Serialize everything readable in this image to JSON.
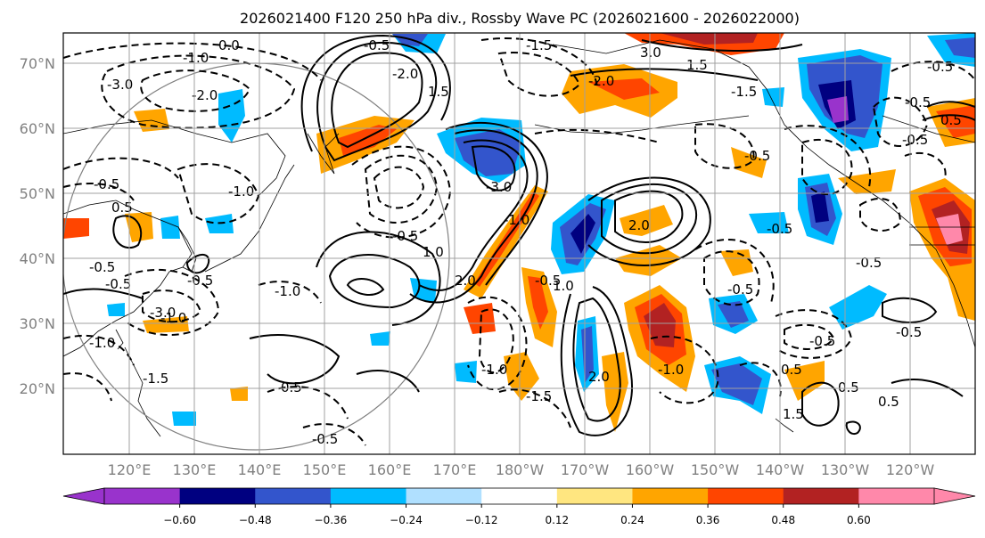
{
  "title": "2026021400 F120 250 hPa div., Rossby Wave PC (2026021600 - 2026022000)",
  "lat_labels": [
    "70°N",
    "60°N",
    "50°N",
    "40°N",
    "30°N",
    "20°N"
  ],
  "lon_labels": [
    "120°E",
    "130°E",
    "140°E",
    "150°E",
    "160°E",
    "170°E",
    "180°W",
    "170°W",
    "160°W",
    "150°W",
    "140°W",
    "130°W",
    "120°W"
  ],
  "colorbar": {
    "ticks": [
      "−0.60",
      "−0.48",
      "−0.36",
      "−0.24",
      "−0.12",
      "0.12",
      "0.24",
      "0.36",
      "0.48",
      "0.60"
    ],
    "colors": [
      "#9933cc",
      "#000080",
      "#3355cc",
      "#00bbff",
      "#b0e0ff",
      "#ffffff",
      "#ffe680",
      "#ffa500",
      "#ff4500",
      "#b22222",
      "#ff88aa"
    ]
  },
  "contour_labels": [
    "0.0",
    "-0.5",
    "-1.0",
    "-3.0",
    "-2.0",
    "-1.5",
    "-2.0",
    "-2.0",
    "-3.0",
    "-1.5",
    "-0.5",
    "-0.5",
    "-0.5",
    "-1.0",
    "-0.5",
    "-1.0",
    "-1.0",
    "-0.5",
    "-1.5",
    "2.0",
    "1.5",
    "3.0",
    "1.0",
    "1.5",
    "2.0",
    "2.0",
    "1.0",
    "-0.5",
    "-1.0",
    "0.5",
    "0.5",
    "-0.5",
    "-0.5",
    "-1.0",
    "-1.5",
    "-3.0",
    "-0.5",
    "0.5",
    "-0.5",
    "1.5",
    "0.5",
    "-1.0",
    "-0.5",
    "-0.5",
    "-0.5",
    "0.5",
    "-1.0",
    "-0.5",
    "-0.5",
    "0.5",
    "-0.5"
  ]
}
